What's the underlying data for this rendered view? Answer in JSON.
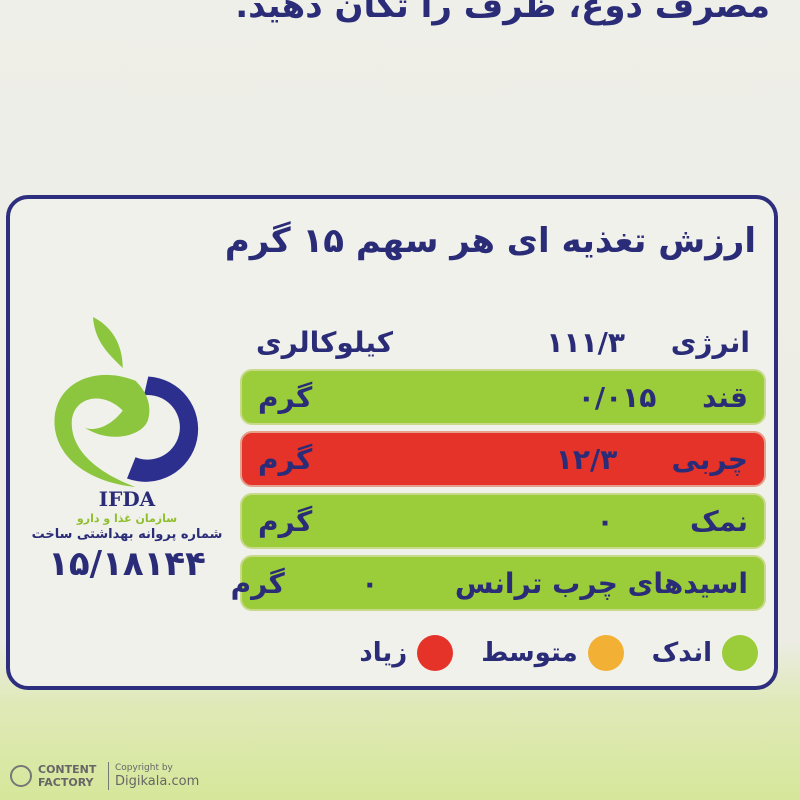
{
  "top_text": "مصرف دوغ، ظرف را تکان دهید.",
  "title": "ارزش تغذیه ای هر سهم ۱۵ گرم",
  "energy": {
    "label": "انرژی",
    "value": "۱۱۱/۳",
    "unit": "کیلوکالری"
  },
  "rows": [
    {
      "label": "قند",
      "value": "۰/۰۱۵",
      "unit": "گرم",
      "level": "low",
      "color": "#9bcd3a"
    },
    {
      "label": "چربی",
      "value": "۱۲/۳",
      "unit": "گرم",
      "level": "high",
      "color": "#e5332a"
    },
    {
      "label": "نمک",
      "value": "۰",
      "unit": "گرم",
      "level": "low",
      "color": "#9bcd3a"
    },
    {
      "label": "اسیدهای چرب ترانس",
      "value": "۰",
      "unit": "گرم",
      "level": "low",
      "color": "#9bcd3a"
    }
  ],
  "legend": [
    {
      "label": "اندک",
      "color": "#9bcd3a"
    },
    {
      "label": "متوسط",
      "color": "#f2b035"
    },
    {
      "label": "زیاد",
      "color": "#e5332a"
    }
  ],
  "logo": {
    "name": "IFDA",
    "org": "سازمان غذا و دارو",
    "license_label": "شماره پروانه بهداشتی ساخت",
    "license_number": "۱۵/۱۸۱۴۴"
  },
  "watermark": {
    "brand": "CONTENT FACTORY",
    "copyright": "Copyright by",
    "site": "Digikala.com"
  }
}
